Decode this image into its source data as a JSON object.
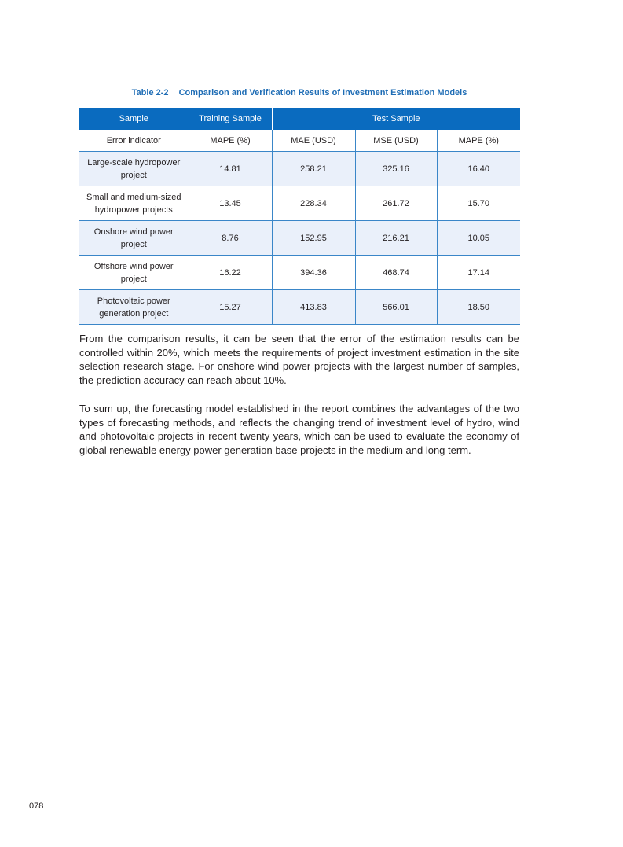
{
  "table": {
    "number": "Table 2-2",
    "title": "Comparison and Verification Results of Investment Estimation Models",
    "header": {
      "sample": "Sample",
      "training": "Training Sample",
      "test": "Test Sample"
    },
    "subheader": [
      "Error indicator",
      "MAPE (%)",
      "MAE (USD)",
      "MSE (USD)",
      "MAPE (%)"
    ],
    "rows": [
      [
        "Large-scale hydropower project",
        "14.81",
        "258.21",
        "325.16",
        "16.40"
      ],
      [
        "Small and medium-sized hydropower projects",
        "13.45",
        "228.34",
        "261.72",
        "15.70"
      ],
      [
        "Onshore wind power project",
        "8.76",
        "152.95",
        "216.21",
        "10.05"
      ],
      [
        "Offshore wind power project",
        "16.22",
        "394.36",
        "468.74",
        "17.14"
      ],
      [
        "Photovoltaic power generation project",
        "15.27",
        "413.83",
        "566.01",
        "18.50"
      ]
    ]
  },
  "paragraphs": [
    "From the comparison results, it can be seen that the error of the estimation results can be controlled within 20%, which meets the requirements of project investment estimation in the site selection research stage. For onshore wind power projects with the largest number of samples, the prediction accuracy can reach about 10%.",
    "To sum up, the forecasting model established in the report combines the advantages of the two types of forecasting methods, and reflects the changing trend of investment level of hydro, wind and photovoltaic projects in recent twenty years, which can be used to evaluate the economy of global renewable energy power generation base projects in the medium and long term."
  ],
  "page_number": "078",
  "colors": {
    "header_blue": "#0a6bbf",
    "title_blue": "#1f6db5",
    "row_tint": "#eaf0fa"
  }
}
